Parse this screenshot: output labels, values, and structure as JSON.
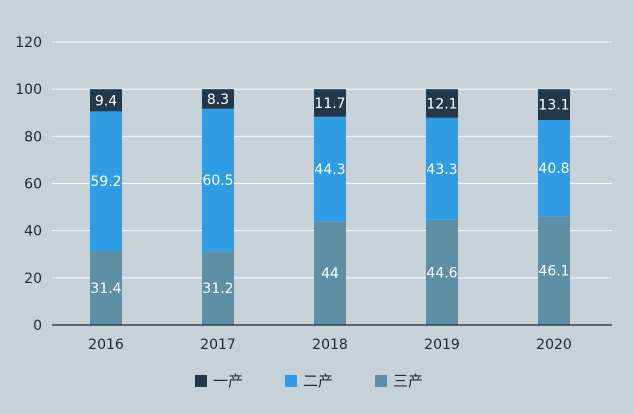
{
  "chart_data": {
    "type": "bar",
    "stacked": true,
    "categories": [
      "2016",
      "2017",
      "2018",
      "2019",
      "2020"
    ],
    "series": [
      {
        "name": "三产",
        "color": "#5f8fa6",
        "values": [
          31.4,
          31.2,
          44,
          44.6,
          46.1
        ]
      },
      {
        "name": "二产",
        "color": "#2f9de5",
        "values": [
          59.2,
          60.5,
          44.3,
          43.3,
          40.8
        ]
      },
      {
        "name": "一产",
        "color": "#23384a",
        "values": [
          9.4,
          8.3,
          11.7,
          12.1,
          13.1
        ]
      }
    ],
    "legend_order": [
      "一产",
      "二产",
      "三产"
    ],
    "y_ticks": [
      0,
      20,
      40,
      60,
      80,
      100,
      120
    ],
    "ylim": [
      0,
      120
    ],
    "grid": true,
    "legend_position": "bottom-center"
  }
}
